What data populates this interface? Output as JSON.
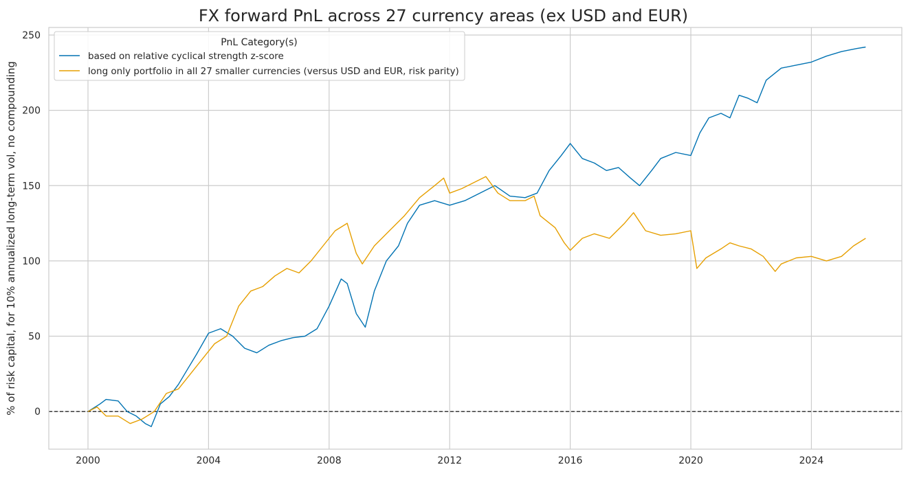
{
  "chart_data": {
    "type": "line",
    "title": "FX forward PnL across 27 currency areas (ex USD and EUR)",
    "xlabel": "",
    "ylabel": "% of risk capital, for 10% annualized long-term vol, no compounding",
    "xlim": [
      1998.7,
      2027.0
    ],
    "ylim": [
      -25,
      255
    ],
    "x_ticks": [
      2000,
      2004,
      2008,
      2012,
      2016,
      2020,
      2024
    ],
    "y_ticks": [
      0,
      50,
      100,
      150,
      200,
      250
    ],
    "grid": true,
    "zero_line": {
      "value": 0,
      "style": "dashed",
      "color": "#000000"
    },
    "legend": {
      "title": "PnL Category(s)",
      "placement": "top-left"
    },
    "series": [
      {
        "name": "based on relative cyclical strength z-score",
        "color": "#0072b2",
        "x": [
          2000.0,
          2000.4,
          2000.6,
          2001.0,
          2001.3,
          2001.6,
          2001.9,
          2002.1,
          2002.4,
          2002.7,
          2003.0,
          2003.3,
          2003.6,
          2004.0,
          2004.4,
          2004.8,
          2005.2,
          2005.6,
          2006.0,
          2006.4,
          2006.8,
          2007.2,
          2007.6,
          2008.0,
          2008.4,
          2008.6,
          2008.9,
          2009.2,
          2009.5,
          2009.9,
          2010.3,
          2010.6,
          2011.0,
          2011.5,
          2012.0,
          2012.5,
          2013.0,
          2013.5,
          2014.0,
          2014.5,
          2014.9,
          2015.3,
          2015.7,
          2016.0,
          2016.4,
          2016.8,
          2017.2,
          2017.6,
          2018.0,
          2018.3,
          2018.7,
          2019.0,
          2019.5,
          2020.0,
          2020.3,
          2020.6,
          2021.0,
          2021.3,
          2021.6,
          2021.9,
          2022.2,
          2022.5,
          2023.0,
          2023.5,
          2024.0,
          2024.5,
          2025.0,
          2025.5,
          2025.8
        ],
        "y": [
          0,
          5,
          8,
          7,
          0,
          -3,
          -8,
          -10,
          5,
          10,
          18,
          28,
          38,
          52,
          55,
          50,
          42,
          39,
          44,
          47,
          49,
          50,
          55,
          70,
          88,
          85,
          65,
          56,
          80,
          100,
          110,
          125,
          137,
          140,
          137,
          140,
          145,
          150,
          143,
          142,
          145,
          160,
          170,
          178,
          168,
          165,
          160,
          162,
          155,
          150,
          160,
          168,
          172,
          170,
          185,
          195,
          198,
          195,
          210,
          208,
          205,
          220,
          228,
          230,
          232,
          236,
          239,
          241,
          242
        ]
      },
      {
        "name": "long only portfolio in all 27 smaller currencies (versus USD and EUR, risk parity)",
        "color": "#e69f00",
        "x": [
          2000.0,
          2000.3,
          2000.6,
          2001.0,
          2001.4,
          2001.8,
          2002.2,
          2002.6,
          2003.0,
          2003.4,
          2003.8,
          2004.2,
          2004.6,
          2005.0,
          2005.4,
          2005.8,
          2006.2,
          2006.6,
          2007.0,
          2007.4,
          2007.8,
          2008.2,
          2008.6,
          2008.9,
          2009.1,
          2009.5,
          2010.0,
          2010.5,
          2011.0,
          2011.5,
          2011.8,
          2012.0,
          2012.4,
          2012.8,
          2013.2,
          2013.6,
          2014.0,
          2014.5,
          2014.8,
          2015.0,
          2015.5,
          2015.8,
          2016.0,
          2016.4,
          2016.8,
          2017.3,
          2017.8,
          2018.1,
          2018.5,
          2019.0,
          2019.5,
          2020.0,
          2020.2,
          2020.5,
          2021.0,
          2021.3,
          2021.6,
          2022.0,
          2022.4,
          2022.8,
          2023.0,
          2023.5,
          2024.0,
          2024.5,
          2025.0,
          2025.4,
          2025.8
        ],
        "y": [
          0,
          3,
          -3,
          -3,
          -8,
          -5,
          0,
          12,
          15,
          25,
          35,
          45,
          50,
          70,
          80,
          83,
          90,
          95,
          92,
          100,
          110,
          120,
          125,
          105,
          98,
          110,
          120,
          130,
          142,
          150,
          155,
          145,
          148,
          152,
          156,
          145,
          140,
          140,
          143,
          130,
          122,
          112,
          107,
          115,
          118,
          115,
          125,
          132,
          120,
          117,
          118,
          120,
          95,
          102,
          108,
          112,
          110,
          108,
          103,
          93,
          98,
          102,
          103,
          100,
          103,
          110,
          115
        ]
      }
    ]
  }
}
